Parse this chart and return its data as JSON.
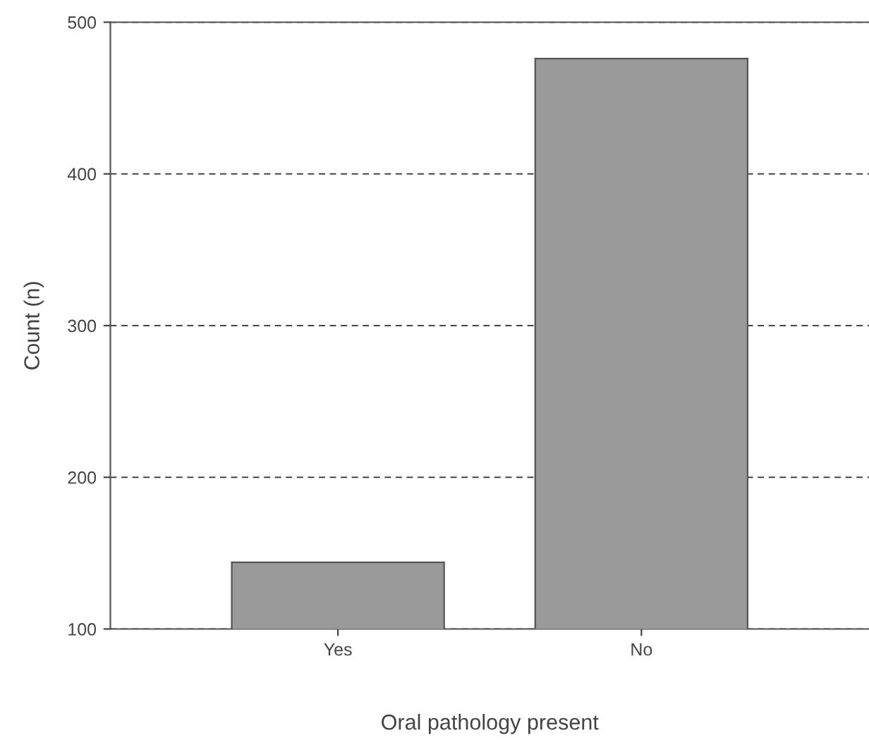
{
  "chart_data": {
    "type": "bar",
    "xlabel": "Oral pathology present",
    "ylabel": "Count (n)",
    "categories": [
      "Yes",
      "No"
    ],
    "values": [
      144,
      476
    ],
    "color": "#9a9a9a",
    "ylim": [
      100,
      500
    ],
    "yticks": [
      100,
      200,
      300,
      400,
      500
    ],
    "grid": "y",
    "line_style": "dashed"
  }
}
